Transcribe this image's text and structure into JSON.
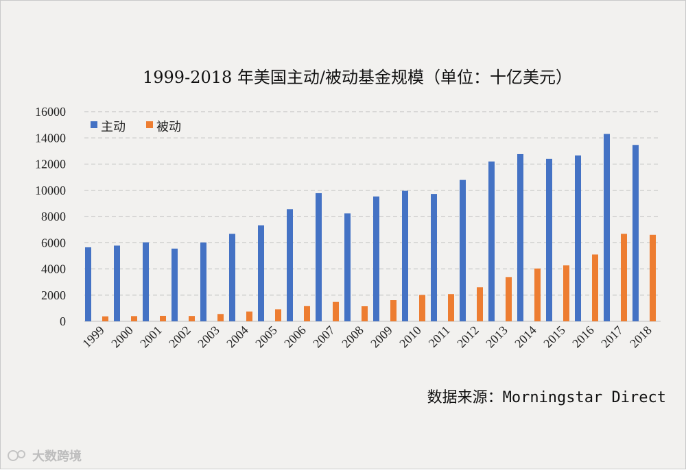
{
  "chart_data": {
    "type": "bar",
    "title": "1999-2018 年美国主动/被动基金规模（单位：十亿美元）",
    "categories": [
      "1999",
      "2000",
      "2001",
      "2002",
      "2003",
      "2004",
      "2005",
      "2006",
      "2007",
      "2008",
      "2009",
      "2010",
      "2011",
      "2012",
      "2013",
      "2014",
      "2015",
      "2016",
      "2017",
      "2018"
    ],
    "series": [
      {
        "name": "主动",
        "color": "#4472c4",
        "values": [
          5650,
          5780,
          6030,
          5550,
          6020,
          6680,
          7320,
          8560,
          9780,
          8240,
          9530,
          9960,
          9720,
          10790,
          12200,
          12760,
          12400,
          12660,
          14300,
          13450
        ]
      },
      {
        "name": "被动",
        "color": "#ed7d31",
        "values": [
          380,
          400,
          420,
          410,
          560,
          750,
          920,
          1160,
          1480,
          1150,
          1620,
          2010,
          2080,
          2600,
          3380,
          4030,
          4270,
          5100,
          6680,
          6600
        ]
      }
    ],
    "yticks": [
      0,
      2000,
      4000,
      6000,
      8000,
      10000,
      12000,
      14000,
      16000
    ],
    "ylim": [
      0,
      16000
    ],
    "grid": true,
    "legend_position": "top-left",
    "xlabel": "",
    "ylabel": ""
  },
  "source_text": "数据来源：Morningstar Direct",
  "watermark_text": "大数跨境"
}
